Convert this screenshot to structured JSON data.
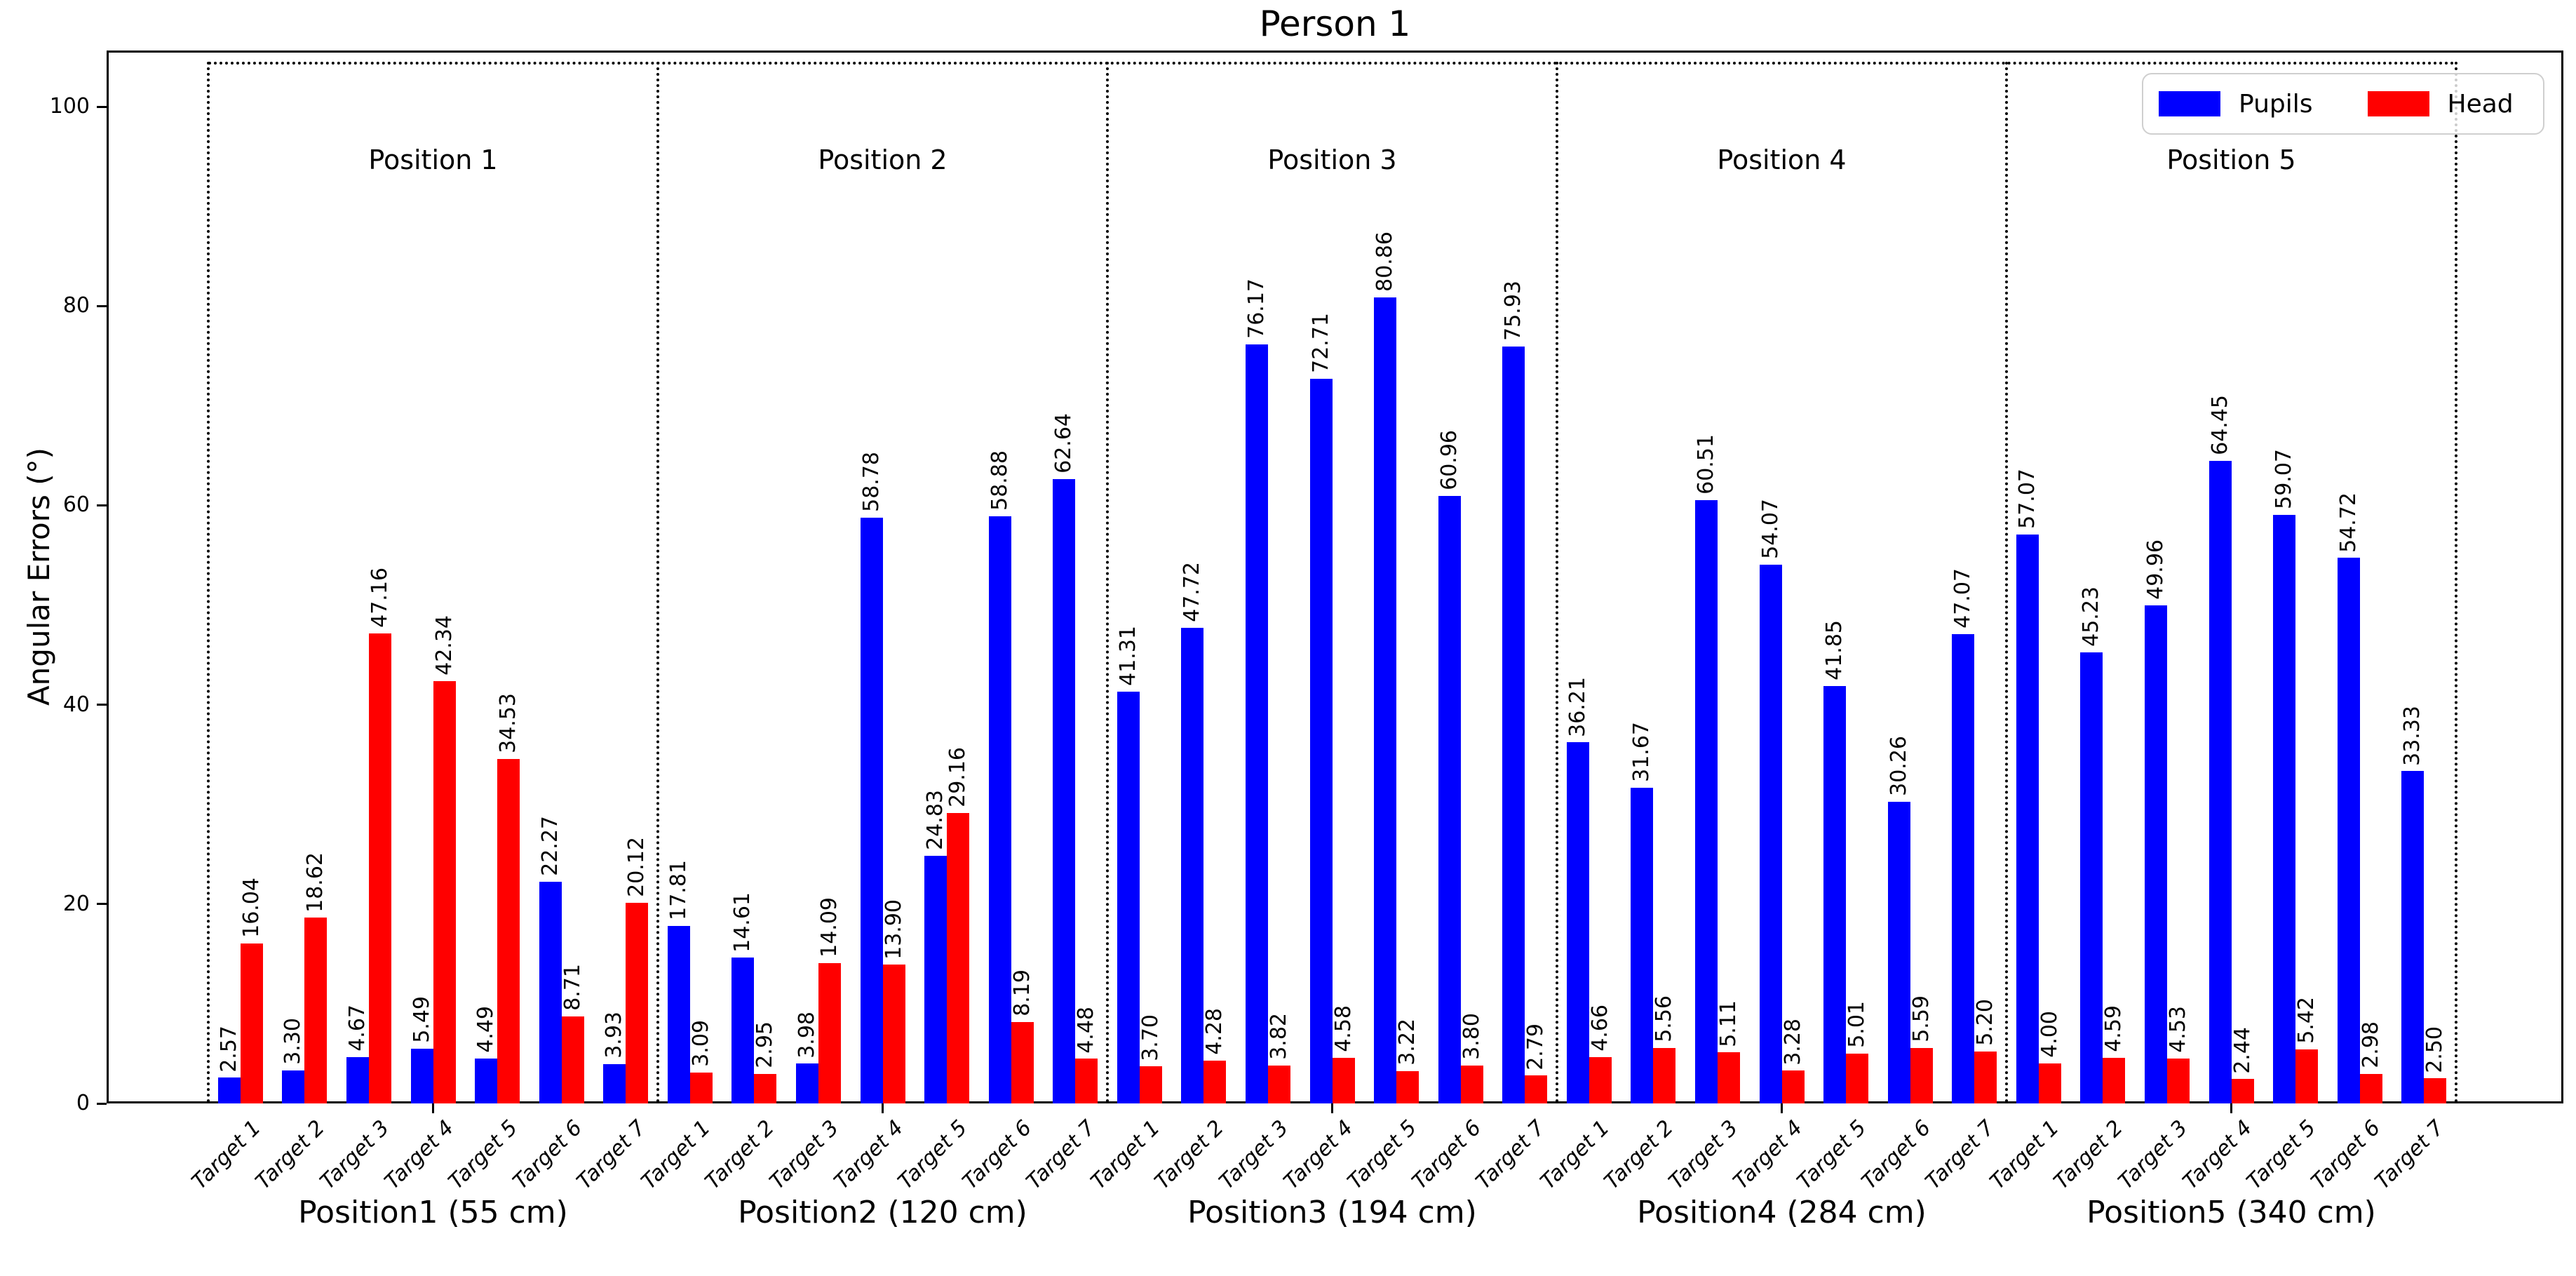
{
  "chart_data": {
    "type": "bar",
    "title": "Person 1",
    "ylabel": "Angular Errors (°)",
    "xlabel": "",
    "ylim": [
      0,
      105.6
    ],
    "y_ticks": [
      0,
      20,
      40,
      60,
      80,
      100
    ],
    "grid": false,
    "legend_position": "upper right",
    "series_names": [
      "Pupils",
      "Head"
    ],
    "colors": {
      "pupils": "#0000ff",
      "head": "#ff0000"
    },
    "group_separator_style": "dotted",
    "value_label_rotation": 90,
    "groups": [
      {
        "header": "Position 1",
        "axis_label": "Position1 (55 cm)",
        "targets": [
          "Target 1",
          "Target 2",
          "Target 3",
          "Target 4",
          "Target 5",
          "Target 6",
          "Target 7"
        ],
        "series": [
          {
            "name": "Pupils",
            "values": [
              2.57,
              3.3,
              4.67,
              5.49,
              4.49,
              22.27,
              3.93
            ]
          },
          {
            "name": "Head",
            "values": [
              16.04,
              18.62,
              47.16,
              42.34,
              34.53,
              8.71,
              20.12
            ]
          }
        ]
      },
      {
        "header": "Position 2",
        "axis_label": "Position2 (120 cm)",
        "targets": [
          "Target 1",
          "Target 2",
          "Target 3",
          "Target 4",
          "Target 5",
          "Target 6",
          "Target 7"
        ],
        "series": [
          {
            "name": "Pupils",
            "values": [
              17.81,
              14.61,
              3.98,
              58.78,
              24.83,
              58.88,
              62.64
            ]
          },
          {
            "name": "Head",
            "values": [
              3.09,
              2.95,
              14.09,
              13.9,
              29.16,
              8.19,
              4.48
            ]
          }
        ]
      },
      {
        "header": "Position 3",
        "axis_label": "Position3 (194 cm)",
        "targets": [
          "Target 1",
          "Target 2",
          "Target 3",
          "Target 4",
          "Target 5",
          "Target 6",
          "Target 7"
        ],
        "series": [
          {
            "name": "Pupils",
            "values": [
              41.31,
              47.72,
              76.17,
              72.71,
              80.86,
              60.96,
              75.93
            ]
          },
          {
            "name": "Head",
            "values": [
              3.7,
              4.28,
              3.82,
              4.58,
              3.22,
              3.8,
              2.79
            ]
          }
        ]
      },
      {
        "header": "Position 4",
        "axis_label": "Position4 (284 cm)",
        "targets": [
          "Target 1",
          "Target 2",
          "Target 3",
          "Target 4",
          "Target 5",
          "Target 6",
          "Target 7"
        ],
        "series": [
          {
            "name": "Pupils",
            "values": [
              36.21,
              31.67,
              60.51,
              54.07,
              41.85,
              30.26,
              47.07
            ]
          },
          {
            "name": "Head",
            "values": [
              4.66,
              5.56,
              5.11,
              3.28,
              5.01,
              5.59,
              5.2
            ]
          }
        ]
      },
      {
        "header": "Position 5",
        "axis_label": "Position5 (340 cm)",
        "targets": [
          "Target 1",
          "Target 2",
          "Target 3",
          "Target 4",
          "Target 5",
          "Target 6",
          "Target 7"
        ],
        "series": [
          {
            "name": "Pupils",
            "values": [
              57.07,
              45.23,
              49.96,
              64.45,
              59.07,
              54.72,
              33.33
            ]
          },
          {
            "name": "Head",
            "values": [
              4.0,
              4.59,
              4.53,
              2.44,
              5.42,
              2.98,
              2.5
            ]
          }
        ]
      }
    ]
  }
}
